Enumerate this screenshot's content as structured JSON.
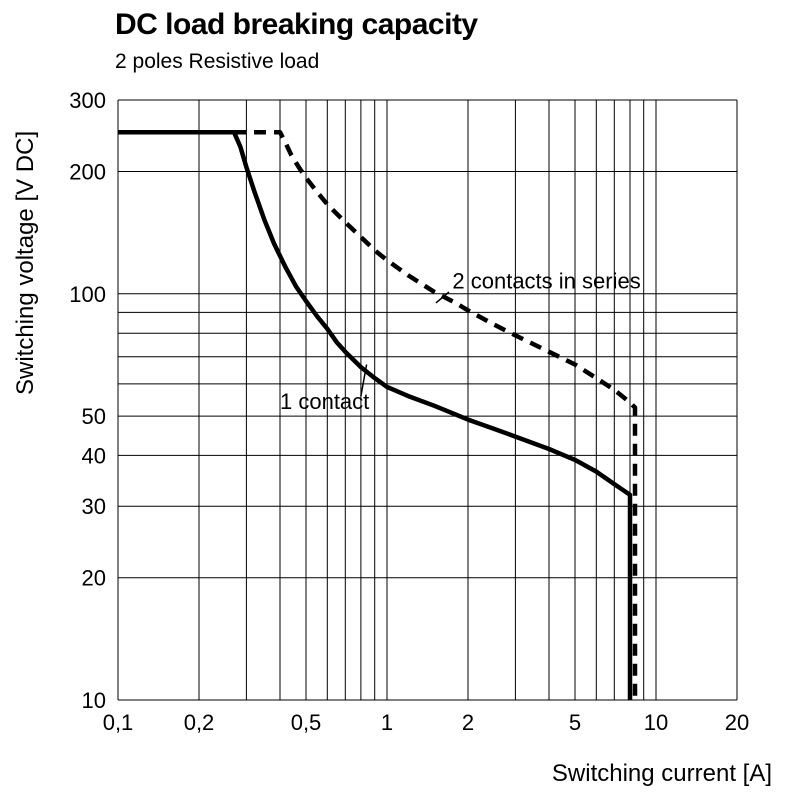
{
  "chart_data": {
    "type": "line",
    "title": "DC load breaking capacity",
    "subtitle": "2 poles Resistive load",
    "xlabel": "Switching current [A]",
    "ylabel": "Switching voltage [V DC]",
    "x_scale": "log",
    "y_scale": "log",
    "xlim": [
      0.1,
      20
    ],
    "ylim": [
      10,
      300
    ],
    "grid": true,
    "background": "#ffffff",
    "line_color": "#000000",
    "grid_color": "#000000",
    "x_ticks": [
      {
        "v": 0.1,
        "label": "0,1"
      },
      {
        "v": 0.2,
        "label": "0,2"
      },
      {
        "v": 0.5,
        "label": "0,5"
      },
      {
        "v": 1,
        "label": "1"
      },
      {
        "v": 2,
        "label": "2"
      },
      {
        "v": 5,
        "label": "5"
      },
      {
        "v": 10,
        "label": "10"
      },
      {
        "v": 20,
        "label": "20"
      }
    ],
    "y_ticks": [
      {
        "v": 10,
        "label": "10"
      },
      {
        "v": 20,
        "label": "20"
      },
      {
        "v": 30,
        "label": "30"
      },
      {
        "v": 40,
        "label": "40"
      },
      {
        "v": 50,
        "label": "50"
      },
      {
        "v": 100,
        "label": "100"
      },
      {
        "v": 200,
        "label": "200"
      },
      {
        "v": 300,
        "label": "300"
      }
    ],
    "x_gridlines": [
      0.1,
      0.2,
      0.3,
      0.4,
      0.5,
      0.6,
      0.7,
      0.8,
      0.9,
      1,
      2,
      3,
      4,
      5,
      6,
      7,
      8,
      9,
      10,
      20
    ],
    "y_gridlines": [
      10,
      20,
      30,
      40,
      50,
      60,
      70,
      80,
      90,
      100,
      200,
      300
    ],
    "series": [
      {
        "name": "1 contact",
        "style": "solid",
        "points": [
          [
            0.1,
            250
          ],
          [
            0.27,
            250
          ],
          [
            0.285,
            230
          ],
          [
            0.3,
            205
          ],
          [
            0.32,
            180
          ],
          [
            0.35,
            152
          ],
          [
            0.38,
            133
          ],
          [
            0.42,
            116
          ],
          [
            0.46,
            104
          ],
          [
            0.5,
            96
          ],
          [
            0.55,
            88
          ],
          [
            0.6,
            82
          ],
          [
            0.65,
            76
          ],
          [
            0.7,
            72
          ],
          [
            0.8,
            66
          ],
          [
            0.9,
            62
          ],
          [
            1,
            59
          ],
          [
            1.2,
            56
          ],
          [
            1.5,
            53
          ],
          [
            2,
            49
          ],
          [
            2.5,
            46.5
          ],
          [
            3,
            44.5
          ],
          [
            4,
            41.5
          ],
          [
            5,
            39
          ],
          [
            6,
            36.5
          ],
          [
            7,
            34
          ],
          [
            8,
            32
          ],
          [
            8,
            10
          ]
        ]
      },
      {
        "name": "2 contacts in series",
        "style": "dashed",
        "points": [
          [
            0.27,
            250
          ],
          [
            0.4,
            250
          ],
          [
            0.42,
            235
          ],
          [
            0.44,
            220
          ],
          [
            0.47,
            205
          ],
          [
            0.5,
            193
          ],
          [
            0.55,
            178
          ],
          [
            0.6,
            166
          ],
          [
            0.7,
            150
          ],
          [
            0.8,
            138
          ],
          [
            0.9,
            128
          ],
          [
            1,
            121
          ],
          [
            1.2,
            111
          ],
          [
            1.5,
            101
          ],
          [
            1.8,
            95
          ],
          [
            2,
            91
          ],
          [
            2.5,
            84
          ],
          [
            3,
            79
          ],
          [
            4,
            72
          ],
          [
            5,
            67
          ],
          [
            6,
            62
          ],
          [
            7,
            58
          ],
          [
            8,
            54
          ],
          [
            8.35,
            52.5
          ],
          [
            8.35,
            10
          ]
        ]
      }
    ],
    "annotations": [
      {
        "text": "2 contacts in series",
        "text_at": [
          1.75,
          103
        ],
        "leader": [
          [
            1.7,
            101
          ],
          [
            1.52,
            95
          ]
        ]
      },
      {
        "text": "1 contact",
        "text_at": [
          0.4,
          52
        ],
        "leader": [
          [
            0.8,
            56
          ],
          [
            0.84,
            67
          ]
        ]
      }
    ],
    "legend_position": "none"
  }
}
